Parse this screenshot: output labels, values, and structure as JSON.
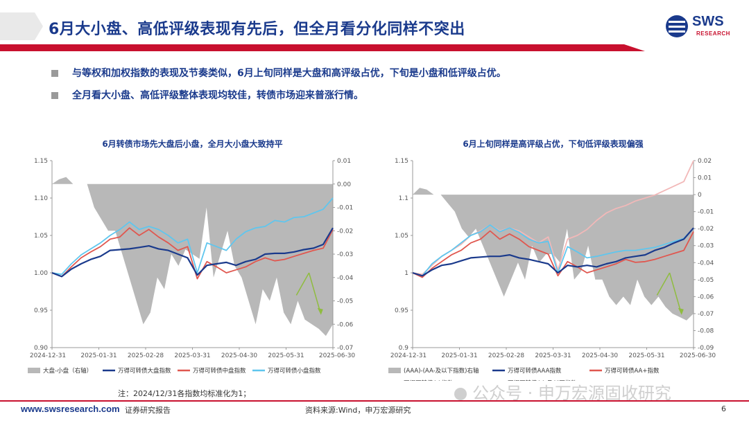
{
  "page": {
    "title": "6月大小盘、高低评级表现有先后，但全月看分化同样不突出",
    "bullets": [
      "与等权和加权指数的表现及节奏类似，6月上旬同样是大盘和高评级占优，下旬是小盘和低评级占优。",
      "全月看大小盘、高低评级整体表现均较佳，转债市场迎来普涨行情。"
    ],
    "note": "注：2024/12/31各指数均标准化为1；",
    "footer": {
      "site": "www.swsresearch.com",
      "type": "证券研究报告",
      "source": "资料来源:Wind，申万宏源研究",
      "page": "6"
    },
    "logo": {
      "text": "SWS",
      "sub": "RESEARCH"
    },
    "watermark": "公众号 · 申万宏源固收研究",
    "colors": {
      "navy": "#1a3a8c",
      "red": "#c8102e",
      "grey_area": "#b8b8b8",
      "mid_red": "#e0574f",
      "light_blue": "#5fc6ee",
      "light_pink": "#f2b8b8",
      "green": "#8fbc3f"
    }
  },
  "chart_data": [
    {
      "type": "line",
      "title": "6月转债市场先大盘后小盘，全月大小盘大致持平",
      "x_ticks": [
        "2024-12-31",
        "2025-01-31",
        "2025-02-28",
        "2025-03-31",
        "2025-04-30",
        "2025-05-31",
        "2025-06-30"
      ],
      "ylim": [
        0.9,
        1.15
      ],
      "y_ticks": [
        0.9,
        0.95,
        1.0,
        1.05,
        1.1,
        1.15
      ],
      "y_tick_labels": [
        "0.90",
        "0.95",
        "1.00",
        "1.05",
        "1.10",
        "1.15"
      ],
      "y2lim": [
        -0.07,
        0.01
      ],
      "y2_ticks": [
        -0.07,
        -0.06,
        -0.05,
        -0.04,
        -0.03,
        -0.02,
        -0.01,
        0.0,
        0.01
      ],
      "y2_tick_labels": [
        "-0.07",
        "-0.06",
        "-0.05",
        "-0.04",
        "-0.03",
        "-0.02",
        "-0.01",
        "0.00",
        "0.01"
      ],
      "series": [
        {
          "name": "大盘-小盘（右轴）",
          "kind": "area_right",
          "color": "#b8b8b8",
          "values": [
            0,
            0.002,
            0.003,
            0,
            0,
            0,
            -0.01,
            -0.015,
            -0.02,
            -0.02,
            -0.03,
            -0.04,
            -0.05,
            -0.06,
            -0.055,
            -0.04,
            -0.045,
            -0.03,
            -0.035,
            -0.028,
            -0.03,
            -0.032,
            -0.01,
            -0.04,
            -0.03,
            -0.02,
            -0.035,
            -0.04,
            -0.05,
            -0.06,
            -0.045,
            -0.05,
            -0.04,
            -0.055,
            -0.06,
            -0.05,
            -0.058,
            -0.06,
            -0.062,
            -0.065,
            -0.06
          ]
        },
        {
          "name": "万得可转债大盘指数",
          "kind": "line",
          "color": "#1a3a8c",
          "values": [
            1.0,
            0.995,
            1.005,
            1.012,
            1.018,
            1.022,
            1.03,
            1.031,
            1.032,
            1.034,
            1.036,
            1.032,
            1.03,
            1.025,
            1.02,
            0.997,
            1.01,
            1.012,
            1.014,
            1.01,
            1.015,
            1.018,
            1.025,
            1.026,
            1.026,
            1.028,
            1.031,
            1.033,
            1.038,
            1.06
          ]
        },
        {
          "name": "万得可转债中盘指数",
          "kind": "line",
          "color": "#e0574f",
          "values": [
            1.0,
            0.995,
            1.008,
            1.02,
            1.028,
            1.035,
            1.045,
            1.048,
            1.06,
            1.05,
            1.058,
            1.048,
            1.04,
            1.03,
            1.035,
            0.992,
            1.015,
            1.008,
            1.0,
            1.004,
            1.008,
            1.015,
            1.02,
            1.016,
            1.018,
            1.022,
            1.026,
            1.03,
            1.033,
            1.058
          ]
        },
        {
          "name": "万得可转债小盘指数",
          "kind": "line",
          "color": "#5fc6ee",
          "values": [
            1.0,
            0.998,
            1.012,
            1.024,
            1.032,
            1.04,
            1.05,
            1.058,
            1.068,
            1.058,
            1.062,
            1.058,
            1.05,
            1.04,
            1.045,
            1.0,
            1.04,
            1.035,
            1.03,
            1.045,
            1.055,
            1.06,
            1.062,
            1.07,
            1.068,
            1.074,
            1.075,
            1.08,
            1.085,
            1.1
          ]
        }
      ],
      "annotation": {
        "kind": "arrow_down",
        "color": "#8fbc3f",
        "label": ""
      }
    },
    {
      "type": "line",
      "title": "6月上旬同样是高评级占优，下旬低评级表现偏强",
      "x_ticks": [
        "2024-12-31",
        "2025-01-31",
        "2025-02-28",
        "2025-03-31",
        "2025-04-30",
        "2025-05-31",
        "2025-06-30"
      ],
      "ylim": [
        0.9,
        1.15
      ],
      "y_ticks": [
        0.9,
        0.95,
        1.0,
        1.05,
        1.1,
        1.15
      ],
      "y_tick_labels": [
        "0.9",
        "0.95",
        "1",
        "1.05",
        "1.1",
        "1.15"
      ],
      "y2lim": [
        -0.09,
        0.02
      ],
      "y2_ticks": [
        -0.09,
        -0.08,
        -0.07,
        -0.06,
        -0.05,
        -0.04,
        -0.03,
        -0.02,
        -0.01,
        0,
        0.01,
        0.02
      ],
      "y2_tick_labels": [
        "-0.09",
        "-0.08",
        "-0.07",
        "-0.06",
        "-0.05",
        "-0.04",
        "-0.03",
        "-0.02",
        "-0.01",
        "0",
        "0.01",
        "0.02"
      ],
      "series": [
        {
          "name": "(AAA)-(AA-及以下指数)右轴",
          "kind": "area_right",
          "color": "#b8b8b8",
          "values": [
            0,
            0.004,
            0.003,
            0,
            0,
            -0.005,
            -0.01,
            -0.02,
            -0.025,
            -0.02,
            -0.03,
            -0.04,
            -0.05,
            -0.06,
            -0.05,
            -0.04,
            -0.05,
            -0.03,
            -0.04,
            -0.035,
            -0.035,
            -0.04,
            -0.02,
            -0.05,
            -0.045,
            -0.03,
            -0.05,
            -0.05,
            -0.06,
            -0.065,
            -0.06,
            -0.065,
            -0.05,
            -0.06,
            -0.065,
            -0.06,
            -0.066,
            -0.07,
            -0.072,
            -0.074,
            -0.07
          ]
        },
        {
          "name": "万得可转债AAA指数",
          "kind": "line",
          "color": "#1a3a8c",
          "values": [
            1.0,
            0.996,
            1.004,
            1.01,
            1.012,
            1.016,
            1.02,
            1.021,
            1.022,
            1.022,
            1.024,
            1.02,
            1.018,
            1.015,
            1.012,
            1.0,
            1.01,
            1.008,
            1.01,
            1.008,
            1.012,
            1.015,
            1.02,
            1.022,
            1.024,
            1.03,
            1.034,
            1.04,
            1.045,
            1.06
          ]
        },
        {
          "name": "万得可转债AA+指数",
          "kind": "line",
          "color": "#e0574f",
          "values": [
            1.0,
            0.994,
            1.006,
            1.015,
            1.024,
            1.03,
            1.04,
            1.045,
            1.056,
            1.045,
            1.052,
            1.045,
            1.035,
            1.03,
            1.025,
            0.996,
            1.015,
            1.008,
            1.0,
            1.004,
            1.008,
            1.012,
            1.018,
            1.014,
            1.015,
            1.018,
            1.022,
            1.026,
            1.03,
            1.055
          ]
        },
        {
          "name": "万得可转债AA指数",
          "kind": "line",
          "color": "#5fc6ee",
          "values": [
            1.0,
            0.996,
            1.012,
            1.022,
            1.03,
            1.04,
            1.05,
            1.055,
            1.064,
            1.055,
            1.06,
            1.054,
            1.045,
            1.04,
            1.042,
            1.0,
            1.035,
            1.028,
            1.02,
            1.022,
            1.025,
            1.028,
            1.03,
            1.03,
            1.032,
            1.034,
            1.038,
            1.042,
            1.046,
            1.06
          ]
        },
        {
          "name": "万得可转债AA-及以下指数",
          "kind": "line",
          "color": "#f2b8b8",
          "values": [
            1.0,
            0.998,
            1.01,
            1.022,
            1.03,
            1.038,
            1.05,
            1.056,
            1.064,
            1.056,
            1.06,
            1.056,
            1.048,
            1.04,
            1.048,
            1.004,
            1.045,
            1.05,
            1.058,
            1.07,
            1.08,
            1.086,
            1.09,
            1.096,
            1.1,
            1.104,
            1.11,
            1.116,
            1.122,
            1.15
          ]
        }
      ],
      "annotation": {
        "kind": "arrow_down",
        "color": "#8fbc3f",
        "label": ""
      }
    }
  ]
}
